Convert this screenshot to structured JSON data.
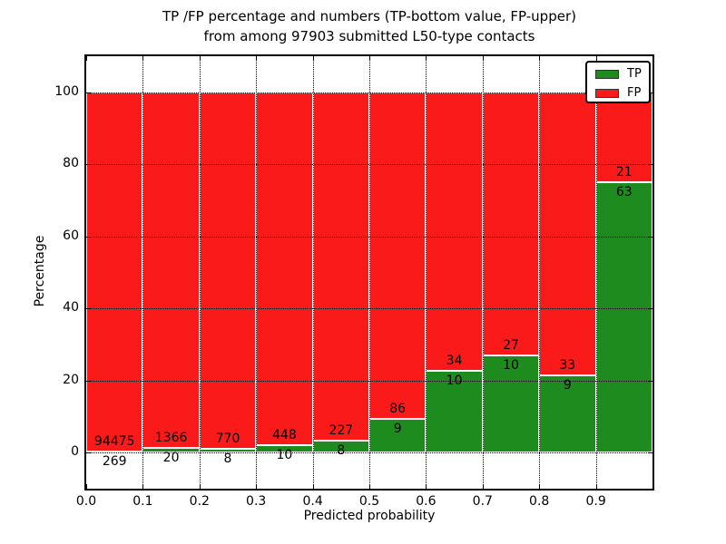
{
  "title": {
    "line1": "TP /FP percentage and numbers (TP-bottom value, FP-upper)",
    "line2": "from among 97903 submitted L50-type contacts"
  },
  "axes": {
    "xlabel": "Predicted probability",
    "ylabel": "Percentage",
    "x_tick_values": [
      0.0,
      0.1,
      0.2,
      0.3,
      0.4,
      0.5,
      0.6,
      0.7,
      0.8,
      0.9
    ],
    "x_tick_labels": [
      "0.0",
      "0.1",
      "0.2",
      "0.3",
      "0.4",
      "0.5",
      "0.6",
      "0.7",
      "0.8",
      "0.9"
    ],
    "y_tick_values": [
      0,
      20,
      40,
      60,
      80,
      100
    ],
    "y_tick_labels": [
      "0",
      "20",
      "40",
      "60",
      "80",
      "100"
    ],
    "xlim": [
      0.0,
      1.0
    ],
    "ylim": [
      -10,
      110
    ],
    "grid_style": "dotted",
    "grid_color": "#000000"
  },
  "legend": {
    "position": "upper right",
    "items": [
      {
        "label": "TP",
        "color": "#1e8b1e"
      },
      {
        "label": "FP",
        "color": "#fa1a1a"
      }
    ]
  },
  "chart_data": {
    "type": "bar",
    "stacked": true,
    "normalized": "each bin stacked to 100%",
    "title": "TP /FP percentage and numbers (TP-bottom value, FP-upper) from among 97903 submitted L50-type contacts",
    "xlabel": "Predicted probability",
    "ylabel": "Percentage",
    "xlim": [
      0.0,
      1.0
    ],
    "ylim": [
      -10,
      110
    ],
    "grid": true,
    "legend_position": "upper right",
    "bar_edge_color": "#ffffff",
    "bin_width": 0.1,
    "bin_edges": [
      0.0,
      0.1,
      0.2,
      0.3,
      0.4,
      0.5,
      0.6,
      0.7,
      0.8,
      0.9,
      1.0
    ],
    "categories": [
      "0.0-0.1",
      "0.1-0.2",
      "0.2-0.3",
      "0.3-0.4",
      "0.4-0.5",
      "0.5-0.6",
      "0.6-0.7",
      "0.7-0.8",
      "0.8-0.9",
      "0.9-1.0"
    ],
    "series": [
      {
        "name": "TP",
        "color": "#1e8b1e",
        "counts": [
          269,
          20,
          8,
          10,
          8,
          9,
          10,
          10,
          9,
          63
        ],
        "percent": [
          0.28,
          1.44,
          1.03,
          2.18,
          3.4,
          9.47,
          22.73,
          27.03,
          21.43,
          75.0
        ]
      },
      {
        "name": "FP",
        "color": "#fa1a1a",
        "counts": [
          94475,
          1366,
          770,
          448,
          227,
          86,
          34,
          27,
          33,
          21
        ],
        "percent": [
          99.72,
          98.56,
          98.97,
          97.82,
          96.6,
          90.53,
          77.27,
          72.97,
          78.57,
          25.0
        ]
      }
    ],
    "total_submitted": 97903
  }
}
